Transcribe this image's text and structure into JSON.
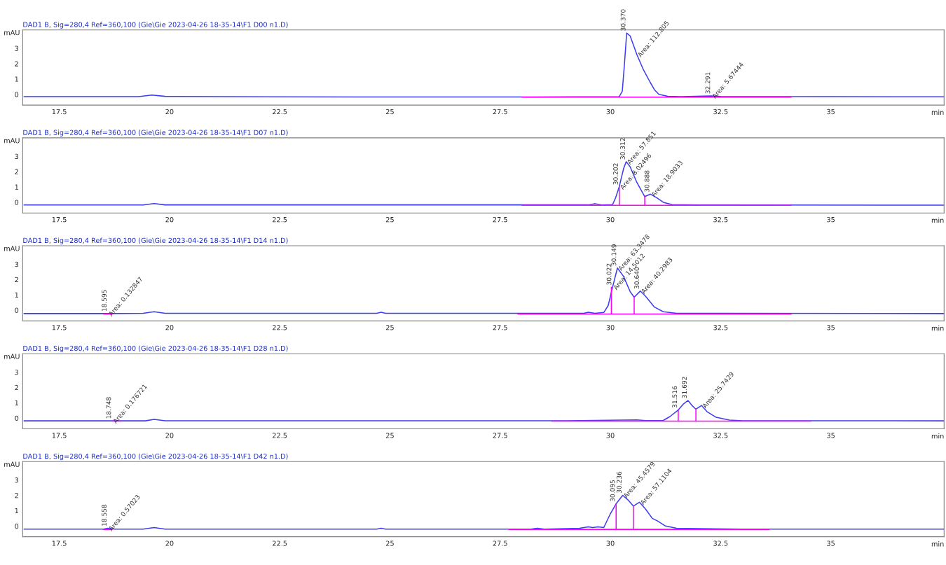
{
  "chart_data": [
    {
      "type": "line",
      "title": "DAD1 B, Sig=280,4 Ref=360,100 (Gie\\Gie 2023-04-26 18-35-14\\F1 D00 n1.D)",
      "xlabel": "min",
      "ylabel": "mAU",
      "xlim": [
        16.67,
        37.57
      ],
      "ylim": [
        -0.7,
        4.2
      ],
      "xticks": [
        17.5,
        20,
        22.5,
        25,
        27.5,
        30,
        32.5,
        35
      ],
      "yticks": [
        0,
        1,
        2,
        3
      ],
      "grid": false,
      "series": [
        {
          "color": "#3c3cf0",
          "x": [
            16.7,
            19.3,
            19.6,
            19.9,
            22,
            25,
            28,
            30.2,
            30.27,
            30.32,
            30.37,
            30.45,
            30.6,
            30.75,
            30.9,
            31.0,
            31.1,
            31.3,
            31.6,
            32.29,
            32.5,
            35,
            37.57
          ],
          "values": [
            -0.15,
            -0.15,
            -0.05,
            -0.13,
            -0.16,
            -0.17,
            -0.17,
            -0.15,
            0.2,
            2.0,
            4.0,
            3.8,
            2.6,
            1.6,
            0.8,
            0.3,
            0.0,
            -0.12,
            -0.15,
            -0.1,
            -0.14,
            -0.15,
            -0.16
          ]
        },
        {
          "color": "#ff00ff",
          "x": [
            28.0,
            34.1
          ],
          "values": [
            -0.18,
            -0.18
          ]
        }
      ],
      "annotations": [
        {
          "text": "30.370",
          "x": 30.37,
          "y": 4.0
        },
        {
          "text": "Area: 112.805",
          "x": 30.6,
          "y": 2.6
        },
        {
          "text": "32.291",
          "x": 32.29,
          "y": -0.1
        },
        {
          "text": "Area: 5.67444",
          "x": 32.29,
          "y": -0.1
        }
      ]
    },
    {
      "type": "line",
      "title": "DAD1 B, Sig=280,4 Ref=360,100 (Gie\\Gie 2023-04-26 18-35-14\\F1 D07 n1.D)",
      "xlabel": "min",
      "ylabel": "mAU",
      "xlim": [
        16.67,
        37.57
      ],
      "ylim": [
        -0.7,
        4.2
      ],
      "xticks": [
        17.5,
        20,
        22.5,
        25,
        27.5,
        30,
        32.5,
        35
      ],
      "yticks": [
        0,
        1,
        2,
        3
      ],
      "grid": false,
      "series": [
        {
          "color": "#3c3cf0",
          "x": [
            16.7,
            19.4,
            19.65,
            19.9,
            29.5,
            29.65,
            29.8,
            30.05,
            30.12,
            30.2,
            30.3,
            30.36,
            30.45,
            30.6,
            30.78,
            30.91,
            31.05,
            31.2,
            31.4,
            32,
            37.57
          ],
          "values": [
            -0.18,
            -0.18,
            -0.08,
            -0.17,
            -0.17,
            -0.1,
            -0.18,
            -0.15,
            0.3,
            1.0,
            2.2,
            2.65,
            2.3,
            1.3,
            0.37,
            0.53,
            0.3,
            0.0,
            -0.15,
            -0.18,
            -0.19
          ]
        },
        {
          "color": "#ff00ff",
          "x": [
            28.0,
            34.1,
            null,
            30.202,
            30.202,
            null,
            30.78,
            30.78
          ],
          "values": [
            -0.2,
            -0.2,
            null,
            -0.2,
            1.0,
            null,
            -0.2,
            0.37
          ]
        }
      ],
      "annotations": [
        {
          "text": "30.202",
          "x": 30.2,
          "y": 1.0
        },
        {
          "text": "Area: 8.02496",
          "x": 30.2,
          "y": 1.0
        },
        {
          "text": "30.312",
          "x": 30.36,
          "y": 2.65
        },
        {
          "text": "Area: 57.851",
          "x": 30.36,
          "y": 2.65
        },
        {
          "text": "30.888",
          "x": 30.91,
          "y": 0.53
        },
        {
          "text": "Area: 18.9033",
          "x": 30.91,
          "y": 0.53
        }
      ]
    },
    {
      "type": "line",
      "title": "DAD1 B, Sig=280,4 Ref=360,100 (Gie\\Gie 2023-04-26 18-35-14\\F1 D14 n1.D)",
      "xlabel": "min",
      "ylabel": "mAU",
      "xlim": [
        16.67,
        37.57
      ],
      "ylim": [
        -0.7,
        4.2
      ],
      "xticks": [
        17.5,
        20,
        22.5,
        25,
        27.5,
        30,
        32.5,
        35
      ],
      "yticks": [
        0,
        1,
        2,
        3
      ],
      "grid": false,
      "series": [
        {
          "color": "#3c3cf0",
          "x": [
            16.7,
            18.6,
            19.4,
            19.65,
            19.9,
            24.7,
            24.8,
            24.9,
            29.4,
            29.5,
            29.65,
            29.85,
            29.95,
            30.05,
            30.16,
            30.3,
            30.45,
            30.54,
            30.68,
            30.8,
            31.0,
            31.2,
            31.5,
            32.5,
            37.57
          ],
          "values": [
            -0.22,
            -0.22,
            -0.2,
            -0.1,
            -0.2,
            -0.2,
            -0.14,
            -0.2,
            -0.2,
            -0.13,
            -0.2,
            -0.15,
            0.3,
            1.5,
            2.75,
            2.2,
            1.2,
            0.85,
            1.25,
            0.9,
            0.2,
            -0.1,
            -0.2,
            -0.2,
            -0.22
          ]
        },
        {
          "color": "#ff00ff",
          "x": [
            18.5,
            18.7,
            null,
            27.9,
            34.1,
            null,
            30.022,
            30.022,
            null,
            30.54,
            30.54
          ],
          "values": [
            -0.25,
            -0.25,
            null,
            -0.25,
            -0.25,
            null,
            -0.25,
            1.5,
            null,
            -0.25,
            0.85
          ]
        }
      ],
      "annotations": [
        {
          "text": "18.595",
          "x": 18.6,
          "y": -0.22
        },
        {
          "text": "Area: 0.132847",
          "x": 18.6,
          "y": -0.22
        },
        {
          "text": "30.022",
          "x": 30.05,
          "y": 1.5
        },
        {
          "text": "Area: 14.5012",
          "x": 30.05,
          "y": 1.5
        },
        {
          "text": "30.149",
          "x": 30.16,
          "y": 2.75
        },
        {
          "text": "Area: 63.3478",
          "x": 30.16,
          "y": 2.75
        },
        {
          "text": "30.640",
          "x": 30.68,
          "y": 1.25
        },
        {
          "text": "Area: 40.2983",
          "x": 30.68,
          "y": 1.25
        }
      ]
    },
    {
      "type": "line",
      "title": "DAD1 B, Sig=280,4 Ref=360,100 (Gie\\Gie 2023-04-26 18-35-14\\F1 D28 n1.D)",
      "xlabel": "min",
      "ylabel": "mAU",
      "xlim": [
        16.67,
        37.57
      ],
      "ylim": [
        -0.7,
        4.2
      ],
      "xticks": [
        17.5,
        20,
        22.5,
        25,
        27.5,
        30,
        32.5,
        35
      ],
      "yticks": [
        0,
        1,
        2,
        3
      ],
      "grid": false,
      "series": [
        {
          "color": "#3c3cf0",
          "x": [
            16.7,
            18.7,
            19.45,
            19.65,
            19.9,
            29,
            30.6,
            30.8,
            31.2,
            31.35,
            31.54,
            31.65,
            31.76,
            31.86,
            31.94,
            32.07,
            32.2,
            32.4,
            32.7,
            33,
            37.57
          ],
          "values": [
            -0.18,
            -0.18,
            -0.18,
            -0.08,
            -0.17,
            -0.17,
            -0.12,
            -0.16,
            -0.15,
            0.1,
            0.53,
            0.9,
            1.15,
            0.8,
            0.58,
            0.82,
            0.4,
            0.05,
            -0.13,
            -0.17,
            -0.18
          ]
        },
        {
          "color": "#ff00ff",
          "x": [
            18.7,
            18.9,
            null,
            28.67,
            34.55,
            null,
            31.54,
            31.54,
            null,
            31.94,
            31.94
          ],
          "values": [
            -0.2,
            -0.2,
            null,
            -0.2,
            -0.2,
            null,
            -0.2,
            0.53,
            null,
            -0.2,
            0.58
          ]
        }
      ],
      "annotations": [
        {
          "text": "18.748",
          "x": 18.7,
          "y": -0.18
        },
        {
          "text": "Area: 0.176721",
          "x": 18.7,
          "y": -0.18
        },
        {
          "text": "31.516",
          "x": 31.54,
          "y": 0.53
        },
        {
          "text": "31.692",
          "x": 31.76,
          "y": 1.15
        },
        {
          "text": "Area: 25.7429",
          "x": 32.07,
          "y": 0.82
        }
      ]
    },
    {
      "type": "line",
      "title": "DAD1 B, Sig=280,4 Ref=360,100 (Gie\\Gie 2023-04-26 18-35-14\\F1 D42 n1.D)",
      "xlabel": "min",
      "ylabel": "mAU",
      "xlim": [
        16.67,
        37.57
      ],
      "ylim": [
        -0.7,
        4.2
      ],
      "xticks": [
        17.5,
        20,
        22.5,
        25,
        27.5,
        30,
        32.5,
        35
      ],
      "yticks": [
        0,
        1,
        2,
        3
      ],
      "grid": false,
      "series": [
        {
          "color": "#3c3cf0",
          "x": [
            16.7,
            18.5,
            18.6,
            18.75,
            19.4,
            19.65,
            19.9,
            24.7,
            24.8,
            24.9,
            28.2,
            28.35,
            28.5,
            29.3,
            29.5,
            29.6,
            29.72,
            29.85,
            30.0,
            30.13,
            30.28,
            30.4,
            30.52,
            30.66,
            30.8,
            30.95,
            31.07,
            31.25,
            31.5,
            33,
            37.57
          ],
          "values": [
            -0.2,
            -0.2,
            -0.15,
            -0.2,
            -0.2,
            -0.1,
            -0.2,
            -0.2,
            -0.14,
            -0.2,
            -0.2,
            -0.14,
            -0.2,
            -0.15,
            -0.05,
            -0.1,
            -0.05,
            -0.1,
            0.8,
            1.45,
            2.0,
            1.7,
            1.3,
            1.55,
            1.1,
            0.5,
            0.33,
            0.0,
            -0.15,
            -0.2,
            -0.2
          ]
        },
        {
          "color": "#ff00ff",
          "x": [
            18.5,
            18.7,
            null,
            27.7,
            33.6,
            null,
            30.13,
            30.13,
            null,
            30.52,
            30.52
          ],
          "values": [
            -0.22,
            -0.22,
            null,
            -0.22,
            -0.22,
            null,
            -0.22,
            1.45,
            null,
            -0.22,
            1.3
          ]
        }
      ],
      "annotations": [
        {
          "text": "18.558",
          "x": 18.6,
          "y": -0.15
        },
        {
          "text": "Area: 0.57023",
          "x": 18.6,
          "y": -0.15
        },
        {
          "text": "30.095",
          "x": 30.13,
          "y": 1.45
        },
        {
          "text": "30.236",
          "x": 30.28,
          "y": 2.0
        },
        {
          "text": "Area: 45.4579",
          "x": 30.28,
          "y": 2.0
        },
        {
          "text": "Area: 57.1104",
          "x": 30.66,
          "y": 1.55
        }
      ]
    }
  ]
}
